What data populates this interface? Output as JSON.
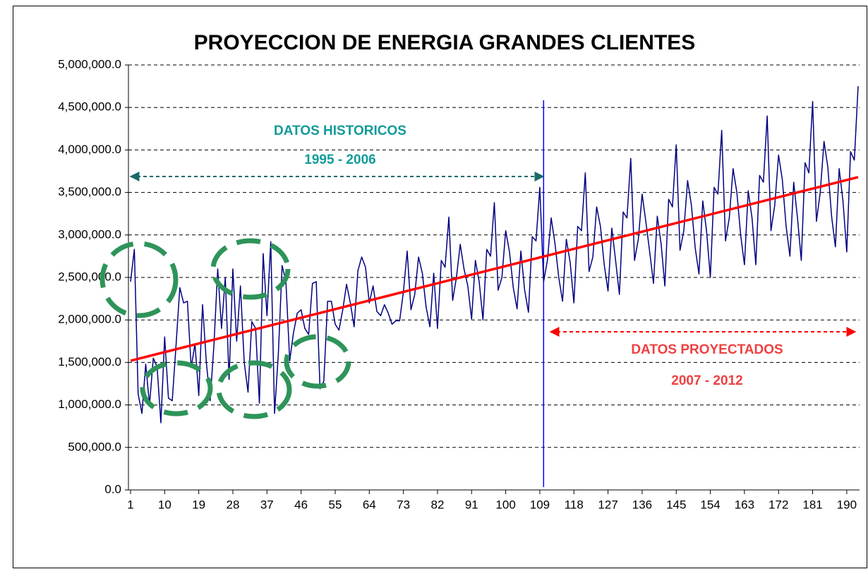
{
  "chart_data": {
    "type": "line",
    "title": "PROYECCION DE ENERGIA GRANDES CLIENTES",
    "x": [
      1,
      2,
      3,
      4,
      5,
      6,
      7,
      8,
      9,
      10,
      11,
      12,
      13,
      14,
      15,
      16,
      17,
      18,
      19,
      20,
      21,
      22,
      23,
      24,
      25,
      26,
      27,
      28,
      29,
      30,
      31,
      32,
      33,
      34,
      35,
      36,
      37,
      38,
      39,
      40,
      41,
      42,
      43,
      44,
      45,
      46,
      47,
      48,
      49,
      50,
      51,
      52,
      53,
      54,
      55,
      56,
      57,
      58,
      59,
      60,
      61,
      62,
      63,
      64,
      65,
      66,
      67,
      68,
      69,
      70,
      71,
      72,
      73,
      74,
      75,
      76,
      77,
      78,
      79,
      80,
      81,
      82,
      83,
      84,
      85,
      86,
      87,
      88,
      89,
      90,
      91,
      92,
      93,
      94,
      95,
      96,
      97,
      98,
      99,
      100,
      101,
      102,
      103,
      104,
      105,
      106,
      107,
      108,
      109,
      110,
      111,
      112,
      113,
      114,
      115,
      116,
      117,
      118,
      119,
      120,
      121,
      122,
      123,
      124,
      125,
      126,
      127,
      128,
      129,
      130,
      131,
      132,
      133,
      134,
      135,
      136,
      137,
      138,
      139,
      140,
      141,
      142,
      143,
      144,
      145,
      146,
      147,
      148,
      149,
      150,
      151,
      152,
      153,
      154,
      155,
      156,
      157,
      158,
      159,
      160,
      161,
      162,
      163,
      164,
      165,
      166,
      167,
      168,
      169,
      170,
      171,
      172,
      173,
      174,
      175,
      176,
      177,
      178,
      179,
      180,
      181,
      182,
      183,
      184,
      185,
      186,
      187,
      188,
      189,
      190,
      191,
      192,
      193
    ],
    "series": [
      {
        "color": "#000080",
        "values": [
          2450000,
          2830000,
          1130000,
          900000,
          1480000,
          1000000,
          1550000,
          1450000,
          790000,
          1800000,
          1080000,
          1050000,
          1700000,
          2380000,
          2200000,
          2220000,
          1440000,
          1720000,
          1110000,
          2180000,
          1500000,
          1050000,
          1700000,
          2600000,
          1900000,
          2500000,
          1300000,
          2600000,
          1750000,
          2400000,
          1500000,
          1150000,
          1980000,
          1900000,
          1020000,
          2780000,
          2050000,
          2920000,
          900000,
          1600000,
          2640000,
          2450000,
          1520000,
          1850000,
          2080000,
          2120000,
          1900000,
          1830000,
          2430000,
          2450000,
          1190000,
          1280000,
          2220000,
          2220000,
          1950000,
          1880000,
          2120000,
          2420000,
          2200000,
          1920000,
          2580000,
          2740000,
          2620000,
          2200000,
          2400000,
          2100000,
          2050000,
          2180000,
          2080000,
          1950000,
          1990000,
          1990000,
          2330000,
          2810000,
          2120000,
          2300000,
          2740000,
          2550000,
          2150000,
          1920000,
          2550000,
          1900000,
          2700000,
          2620000,
          3210000,
          2230000,
          2500000,
          2890000,
          2600000,
          2400000,
          2010000,
          2700000,
          2450000,
          2000000,
          2830000,
          2750000,
          3380000,
          2350000,
          2500000,
          3050000,
          2800000,
          2380000,
          2130000,
          2810000,
          2350000,
          2090000,
          2980000,
          2930000,
          3560000,
          2450000,
          2700000,
          3200000,
          2900000,
          2500000,
          2220000,
          2950000,
          2680000,
          2200000,
          3100000,
          3050000,
          3730000,
          2570000,
          2740000,
          3330000,
          3100000,
          2650000,
          2340000,
          3080000,
          2700000,
          2300000,
          3270000,
          3200000,
          3900000,
          2700000,
          2950000,
          3480000,
          3150000,
          2800000,
          2430000,
          3220000,
          2900000,
          2400000,
          3420000,
          3330000,
          4060000,
          2820000,
          3050000,
          3640000,
          3350000,
          2850000,
          2540000,
          3400000,
          3050000,
          2500000,
          3560000,
          3480000,
          4230000,
          2930000,
          3200000,
          3780000,
          3500000,
          3000000,
          2650000,
          3520000,
          3200000,
          2650000,
          3700000,
          3620000,
          4400000,
          3050000,
          3350000,
          3940000,
          3650000,
          3100000,
          2750000,
          3620000,
          3200000,
          2700000,
          3850000,
          3730000,
          4570000,
          3160000,
          3500000,
          4100000,
          3800000,
          3220000,
          2860000,
          3780000,
          3400000,
          2800000,
          3980000,
          3880000,
          4750000
        ]
      },
      {
        "color": "#ff0000",
        "x": [
          1,
          193
        ],
        "values": [
          1520000,
          3680000
        ]
      }
    ],
    "vline": {
      "x": 110,
      "color": "#0000ff"
    },
    "annotations": [
      {
        "text": "DATOS HISTORICOS",
        "color": "#139a9a"
      },
      {
        "text": "1995 - 2006",
        "color": "#139a9a"
      },
      {
        "text": "DATOS PROYECTADOS",
        "color": "#f04040"
      },
      {
        "text": "2007 - 2012",
        "color": "#f04040"
      }
    ],
    "xlim": [
      1,
      193
    ],
    "ylim": [
      0,
      5000000
    ],
    "xticks": [
      1,
      10,
      19,
      28,
      37,
      46,
      55,
      64,
      73,
      82,
      91,
      100,
      109,
      118,
      127,
      136,
      145,
      154,
      163,
      172,
      181,
      190
    ],
    "yticks": [
      {
        "value": 0,
        "label": "0.0"
      },
      {
        "value": 500000,
        "label": "500,000.0"
      },
      {
        "value": 1000000,
        "label": "1,000,000.0"
      },
      {
        "value": 1500000,
        "label": "1,500,000.0"
      },
      {
        "value": 2000000,
        "label": "2,000,000.0"
      },
      {
        "value": 2500000,
        "label": "2,500,000.0"
      },
      {
        "value": 3000000,
        "label": "3,000,000.0"
      },
      {
        "value": 3500000,
        "label": "3,500,000.0"
      },
      {
        "value": 4000000,
        "label": "4,000,000.0"
      },
      {
        "value": 4500000,
        "label": "4,500,000.0"
      },
      {
        "value": 5000000,
        "label": "5,000,000.0"
      }
    ],
    "grid": true
  }
}
